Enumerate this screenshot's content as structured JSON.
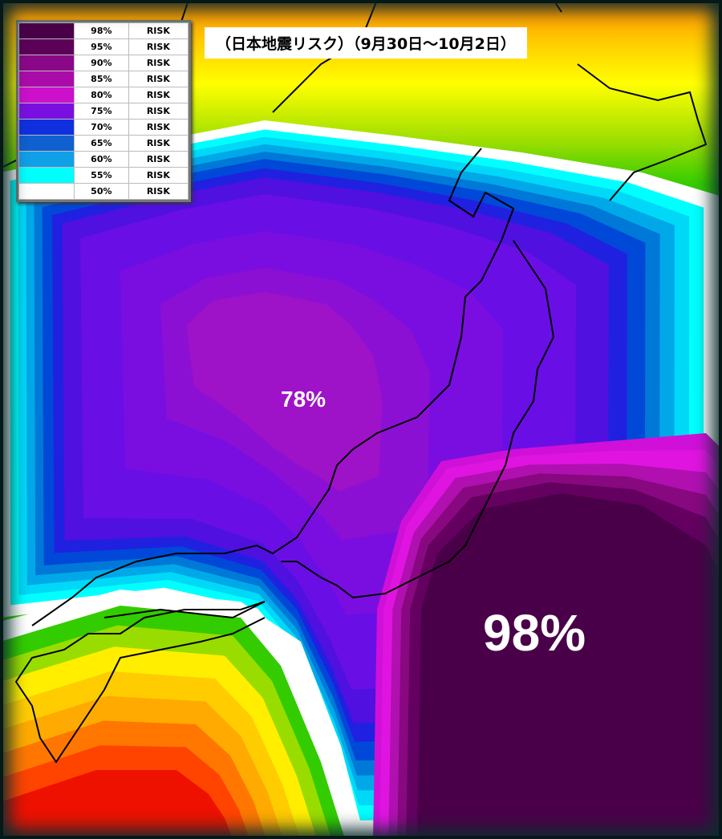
{
  "title": "（日本地震リスク）（9月30日～10月2日）",
  "legend": [
    {
      "color": "#4a0048",
      "percent": "98%",
      "label": "RISK"
    },
    {
      "color": "#5c0058",
      "percent": "95%",
      "label": "RISK"
    },
    {
      "color": "#8a0888",
      "percent": "90%",
      "label": "RISK"
    },
    {
      "color": "#aa0caa",
      "percent": "85%",
      "label": "RISK"
    },
    {
      "color": "#cc10cc",
      "percent": "80%",
      "label": "RISK"
    },
    {
      "color": "#7a10e0",
      "percent": "75%",
      "label": "RISK"
    },
    {
      "color": "#1030e0",
      "percent": "70%",
      "label": "RISK"
    },
    {
      "color": "#1060d0",
      "percent": "65%",
      "label": "RISK"
    },
    {
      "color": "#10a0e8",
      "percent": "60%",
      "label": "RISK"
    },
    {
      "color": "#00ffff",
      "percent": "55%",
      "label": "RISK"
    },
    {
      "color": "#ffffff",
      "percent": "50%",
      "label": "RISK"
    }
  ],
  "annotations": [
    "78%",
    "98%"
  ]
}
